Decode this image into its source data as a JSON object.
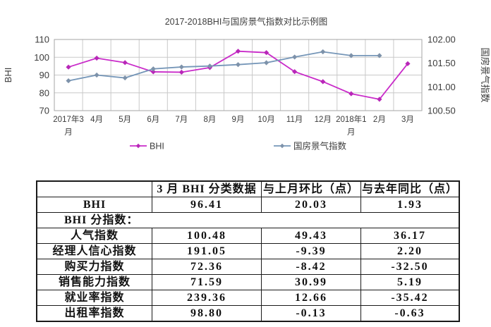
{
  "chart_data": {
    "type": "line",
    "title": "2017-2018BHI与国房景气指数对比示例图",
    "categories": [
      "2017年3\n月",
      "4月",
      "5月",
      "6月",
      "7月",
      "8月",
      "9月",
      "10月",
      "11月",
      "12月",
      "2018年1\n月",
      "2月",
      "3月"
    ],
    "series": [
      {
        "name": "BHI",
        "axis": "left",
        "line_color": "#c92bc9",
        "marker_color": "#b827b8",
        "values": [
          94.48,
          99.5,
          97.0,
          91.8,
          91.6,
          94.2,
          103.4,
          102.6,
          91.9,
          86.3,
          79.5,
          76.38,
          96.41
        ]
      },
      {
        "name": "国房景气指数",
        "axis": "right",
        "line_color": "#7596b8",
        "marker_color": "#7d92aa",
        "values": [
          101.13,
          101.25,
          101.19,
          101.38,
          101.42,
          101.44,
          101.47,
          101.51,
          101.63,
          101.74,
          101.66,
          101.66,
          null
        ]
      }
    ],
    "left_axis": {
      "label": "BHI",
      "min": 70,
      "max": 110,
      "ticks": [
        "110",
        "100",
        "90",
        "80",
        "70"
      ],
      "tick_values": [
        110,
        100,
        90,
        80,
        70
      ]
    },
    "right_axis": {
      "label": "国房景气指数",
      "min": 100.5,
      "max": 102.0,
      "ticks": [
        "102.00",
        "101.50",
        "101.00",
        "100.50"
      ],
      "tick_values": [
        102.0,
        101.5,
        101.0,
        100.5
      ]
    },
    "grid": true,
    "legend_position": "bottom",
    "colors": {
      "grid": "#c9c9c9",
      "border": "#a6a6a6",
      "text": "#3c3c3c"
    }
  },
  "table": {
    "headers": [
      "",
      "3 月 BHI 分类数据",
      "与上月环比（点）",
      "与去年同比（点）"
    ],
    "rows": [
      {
        "label": "BHI",
        "values": [
          "96.41",
          "20.03",
          "1.93"
        ]
      },
      {
        "label": "BHI 分指数：",
        "span": true
      },
      {
        "label": "人气指数",
        "values": [
          "100.48",
          "49.43",
          "36.17"
        ]
      },
      {
        "label": "经理人信心指数",
        "values": [
          "191.05",
          "-9.39",
          "2.20"
        ]
      },
      {
        "label": "购买力指数",
        "values": [
          "72.36",
          "-8.42",
          "-32.50"
        ]
      },
      {
        "label": "销售能力指数",
        "values": [
          "71.59",
          "30.99",
          "5.19"
        ]
      },
      {
        "label": "就业率指数",
        "values": [
          "239.36",
          "12.66",
          "-35.42"
        ]
      },
      {
        "label": "出租率指数",
        "values": [
          "98.80",
          "-0.13",
          "-0.63"
        ]
      }
    ]
  }
}
